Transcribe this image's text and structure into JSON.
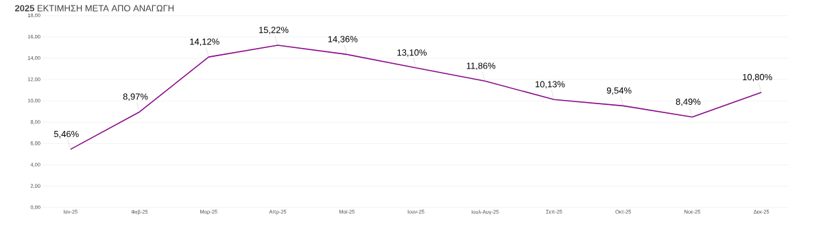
{
  "chart_data": {
    "type": "line",
    "title": "**2025** ΕΚΤΙΜΗΣΗ ΜΕΤΑ ΑΠΟ ΑΝΑΓΩΓΗ",
    "categories": [
      "Ιαν-25",
      "Φεβ-25",
      "Μαρ-25",
      "Απρ-25",
      "Μαϊ-25",
      "Ιουν-25",
      "Ιουλ-Αυγ-25",
      "Σεπ-25",
      "Οκτ-25",
      "Νοε-25",
      "Δεκ-25"
    ],
    "values": [
      5.46,
      8.97,
      14.12,
      15.22,
      14.36,
      13.1,
      11.86,
      10.13,
      9.54,
      8.49,
      10.8
    ],
    "value_labels": [
      "5,46%",
      "8,97%",
      "14,12%",
      "15,22%",
      "14,36%",
      "13,10%",
      "11,86%",
      "10,13%",
      "9,54%",
      "8,49%",
      "10,80%"
    ],
    "color": "#8b0a8b",
    "line_style": "solid",
    "marker": "none",
    "grid": "y",
    "ylim": [
      0,
      18
    ],
    "yticks": [
      {
        "value": 0,
        "label": "0,00"
      },
      {
        "value": 2,
        "label": "2,00"
      },
      {
        "value": 4,
        "label": "4,00"
      },
      {
        "value": 6,
        "label": "6,00"
      },
      {
        "value": 8,
        "label": "8,00"
      },
      {
        "value": 10,
        "label": "10,00"
      },
      {
        "value": 12,
        "label": "12,00"
      },
      {
        "value": 14,
        "label": "14,00"
      },
      {
        "value": 16,
        "label": "16,00"
      },
      {
        "value": 18,
        "label": "18,00"
      }
    ]
  }
}
